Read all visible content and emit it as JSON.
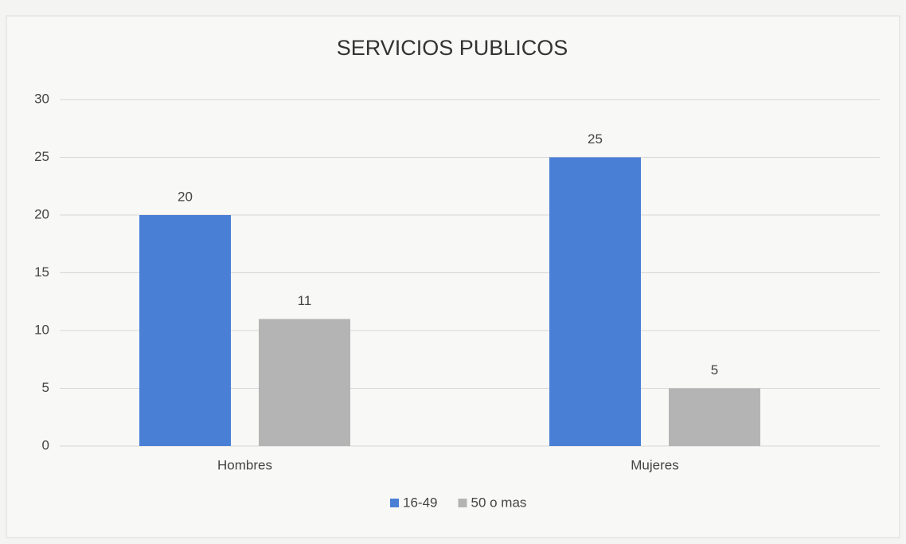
{
  "chart_data": {
    "type": "bar",
    "title": "SERVICIOS PUBLICOS",
    "categories": [
      "Hombres",
      "Mujeres"
    ],
    "series": [
      {
        "name": "16-49",
        "color": "#4a7fd6",
        "values": [
          20,
          25
        ]
      },
      {
        "name": "50 o mas",
        "color": "#b4b4b4",
        "values": [
          11,
          5
        ]
      }
    ],
    "ylim": [
      0,
      30
    ],
    "yticks": [
      0,
      5,
      10,
      15,
      20,
      25,
      30
    ],
    "grid": true,
    "legend": "bottom"
  }
}
